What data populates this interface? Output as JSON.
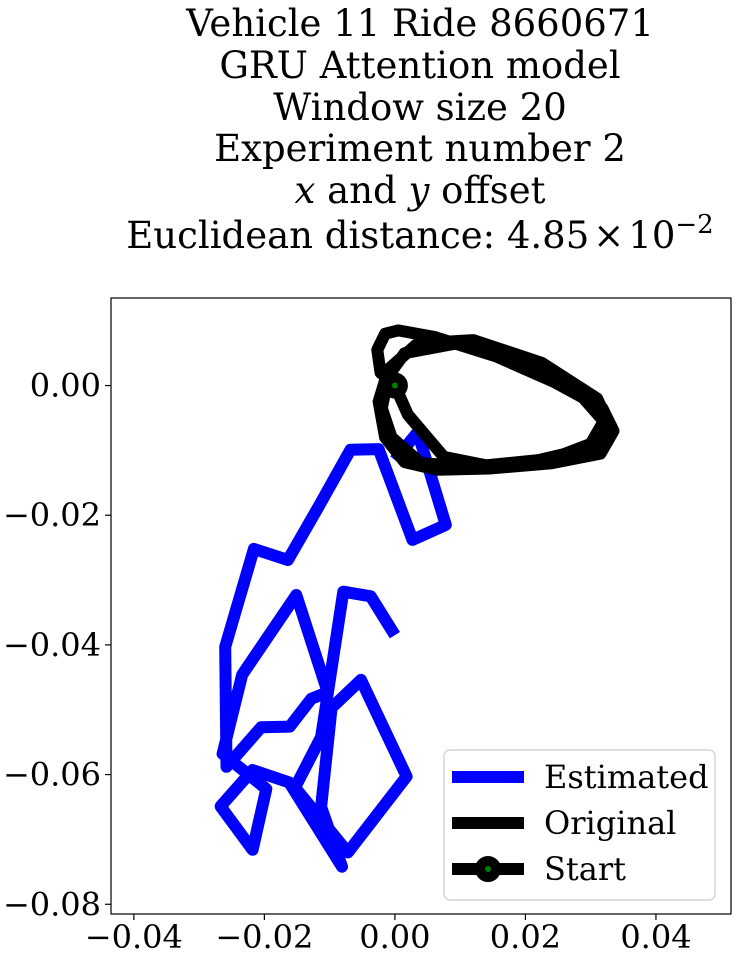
{
  "chart_data": {
    "type": "line",
    "title_lines": [
      "Vehicle 11 Ride 8660671",
      "GRU Attention model",
      "Window size 20",
      "Experiment number 2"
    ],
    "title_xy": {
      "x": "x",
      "and": " and ",
      "y": "y",
      "rest": " offset"
    },
    "title_dist": {
      "prefix": "Euclidean distance: ",
      "mantissa": "4.85",
      "times": "×",
      "base": "10",
      "exponent": "−2"
    },
    "xlim": [
      -0.0435,
      0.0515
    ],
    "ylim": [
      -0.0815,
      0.0135
    ],
    "xticks": [
      {
        "v": -0.04,
        "label": "−0.04"
      },
      {
        "v": -0.02,
        "label": "−0.02"
      },
      {
        "v": 0.0,
        "label": "0.00"
      },
      {
        "v": 0.02,
        "label": "0.02"
      },
      {
        "v": 0.04,
        "label": "0.04"
      }
    ],
    "yticks": [
      {
        "v": 0.0,
        "label": "0.00"
      },
      {
        "v": -0.02,
        "label": "−0.02"
      },
      {
        "v": -0.04,
        "label": "−0.04"
      },
      {
        "v": -0.06,
        "label": "−0.06"
      },
      {
        "v": -0.08,
        "label": "−0.08"
      }
    ],
    "grid": false,
    "legend_position": "lower-right",
    "series": [
      {
        "name": "Estimated",
        "color": "#0000ff",
        "x": [
          0.0,
          0.0035,
          0.0078,
          0.0027,
          -0.0025,
          -0.0068,
          -0.0117,
          -0.0164,
          -0.0216,
          -0.026,
          -0.0258,
          -0.0205,
          -0.0161,
          -0.0128,
          -0.0103,
          -0.0151,
          -0.0234,
          -0.0264,
          -0.0197,
          -0.0218,
          -0.0267,
          -0.0218,
          -0.0162,
          -0.0081,
          -0.0113,
          -0.0097,
          -0.0052,
          0.0018,
          -0.0072,
          -0.0153,
          -0.0113,
          -0.0079,
          -0.0037,
          0.0
        ],
        "y": [
          -0.0115,
          -0.0072,
          -0.0215,
          -0.0238,
          -0.0098,
          -0.0099,
          -0.0187,
          -0.0269,
          -0.0252,
          -0.0403,
          -0.0588,
          -0.0527,
          -0.0526,
          -0.0483,
          -0.0473,
          -0.0323,
          -0.0446,
          -0.0568,
          -0.0622,
          -0.0716,
          -0.0649,
          -0.0593,
          -0.0612,
          -0.0742,
          -0.065,
          -0.0497,
          -0.0454,
          -0.0603,
          -0.072,
          -0.062,
          -0.0542,
          -0.0318,
          -0.0325,
          -0.0385
        ]
      },
      {
        "name": "Original",
        "color": "#000000",
        "x": [
          0.0,
          -0.0022,
          -0.0027,
          -0.0015,
          0.0005,
          0.006,
          0.0155,
          0.0245,
          0.0318,
          0.0335,
          0.0315,
          0.024,
          0.0145,
          0.0065,
          0.0015,
          -0.0015,
          -0.0025,
          -0.001,
          0.0035,
          0.012,
          0.0225,
          0.031,
          0.033,
          0.0305,
          0.022,
          0.012,
          0.004,
          -0.0005,
          -0.002,
          -0.001,
          0.0015,
          0.0095,
          0.02,
          0.0285,
          0.032,
          0.03,
          0.0235,
          0.015,
          0.0075,
          0.002,
          0.0
        ],
        "y": [
          0.0,
          0.002,
          0.0055,
          0.008,
          0.0085,
          0.0075,
          0.0045,
          0.0005,
          -0.0035,
          -0.007,
          -0.0105,
          -0.012,
          -0.0128,
          -0.013,
          -0.0118,
          -0.008,
          -0.0025,
          0.0025,
          0.0065,
          0.007,
          0.0035,
          -0.002,
          -0.0065,
          -0.0095,
          -0.0115,
          -0.0125,
          -0.012,
          -0.008,
          -0.0035,
          0.0015,
          0.005,
          0.0065,
          0.0035,
          -0.0015,
          -0.0055,
          -0.009,
          -0.0115,
          -0.0125,
          -0.011,
          -0.0045,
          0.0
        ]
      },
      {
        "name": "Start",
        "color": "#000000",
        "marker_face": "#008000",
        "x": [
          0.0
        ],
        "y": [
          0.0
        ]
      }
    ]
  }
}
